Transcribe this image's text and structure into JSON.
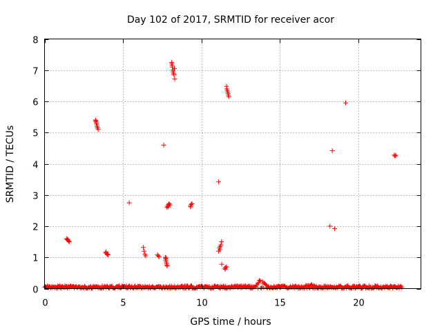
{
  "chart_data": {
    "type": "scatter",
    "title": "Day 102 of 2017, SRMTID for receiver acor",
    "xlabel": "GPS time / hours",
    "ylabel": "SRMTID / TECUs",
    "xlim": [
      0,
      24
    ],
    "ylim": [
      0,
      8
    ],
    "x_ticks": [
      0,
      5,
      10,
      15,
      20
    ],
    "x_tick_labels": [
      "0",
      "5",
      "10",
      "15",
      "20"
    ],
    "y_ticks": [
      0,
      1,
      2,
      3,
      4,
      5,
      6,
      7,
      8
    ],
    "y_tick_labels": [
      "0",
      "1",
      "2",
      "3",
      "4",
      "5",
      "6",
      "7",
      "8"
    ],
    "grid": true,
    "marker": "+",
    "color": "#ff0000",
    "baseline": {
      "x_start": 0.0,
      "x_end": 22.8,
      "y_min": 0.0,
      "y_max": 0.1,
      "bumps": [
        {
          "x": 13.8,
          "y_max": 0.35
        },
        {
          "x": 16.9,
          "y_max": 0.15
        },
        {
          "x": 11.8,
          "y_max": 0.13
        }
      ]
    },
    "points": [
      [
        1.4,
        1.6
      ],
      [
        1.45,
        1.57
      ],
      [
        1.5,
        1.55
      ],
      [
        1.55,
        1.52
      ],
      [
        1.58,
        1.5
      ],
      [
        1.47,
        1.58
      ],
      [
        3.25,
        5.4
      ],
      [
        3.28,
        5.35
      ],
      [
        3.3,
        5.3
      ],
      [
        3.33,
        5.25
      ],
      [
        3.35,
        5.2
      ],
      [
        3.38,
        5.15
      ],
      [
        3.42,
        5.1
      ],
      [
        3.27,
        5.38
      ],
      [
        3.9,
        1.15
      ],
      [
        3.95,
        1.12
      ],
      [
        4.0,
        1.1
      ],
      [
        4.05,
        1.08
      ],
      [
        3.92,
        1.18
      ],
      [
        5.4,
        2.75
      ],
      [
        6.3,
        1.32
      ],
      [
        6.35,
        1.2
      ],
      [
        6.4,
        1.1
      ],
      [
        6.45,
        1.05
      ],
      [
        7.2,
        1.08
      ],
      [
        7.25,
        1.05
      ],
      [
        7.3,
        1.02
      ],
      [
        7.6,
        4.6
      ],
      [
        7.7,
        1.0
      ],
      [
        7.72,
        0.95
      ],
      [
        7.74,
        0.9
      ],
      [
        7.76,
        0.85
      ],
      [
        7.78,
        0.8
      ],
      [
        7.8,
        0.75
      ],
      [
        7.82,
        0.72
      ],
      [
        7.75,
        0.98
      ],
      [
        7.8,
        2.6
      ],
      [
        7.85,
        2.65
      ],
      [
        7.9,
        2.7
      ],
      [
        7.95,
        2.72
      ],
      [
        8.0,
        2.68
      ],
      [
        7.88,
        2.62
      ],
      [
        8.1,
        7.25
      ],
      [
        8.12,
        7.2
      ],
      [
        8.15,
        7.1
      ],
      [
        8.18,
        7.0
      ],
      [
        8.2,
        6.95
      ],
      [
        8.22,
        6.9
      ],
      [
        8.25,
        6.85
      ],
      [
        8.28,
        7.05
      ],
      [
        8.3,
        6.72
      ],
      [
        8.14,
        7.15
      ],
      [
        9.3,
        2.65
      ],
      [
        9.35,
        2.7
      ],
      [
        9.4,
        2.72
      ],
      [
        9.32,
        2.62
      ],
      [
        11.1,
        3.42
      ],
      [
        11.1,
        1.2
      ],
      [
        11.15,
        1.3
      ],
      [
        11.2,
        1.35
      ],
      [
        11.25,
        1.4
      ],
      [
        11.28,
        1.5
      ],
      [
        11.18,
        1.25
      ],
      [
        11.3,
        0.78
      ],
      [
        11.5,
        0.65
      ],
      [
        11.55,
        0.68
      ],
      [
        11.6,
        0.7
      ],
      [
        11.52,
        0.62
      ],
      [
        11.6,
        6.48
      ],
      [
        11.62,
        6.4
      ],
      [
        11.65,
        6.35
      ],
      [
        11.68,
        6.3
      ],
      [
        11.7,
        6.25
      ],
      [
        11.75,
        6.15
      ],
      [
        11.72,
        6.2
      ],
      [
        18.2,
        2.0
      ],
      [
        18.35,
        4.42
      ],
      [
        18.5,
        1.92
      ],
      [
        19.2,
        5.95
      ],
      [
        22.3,
        4.28
      ],
      [
        22.35,
        4.25
      ],
      [
        22.4,
        4.27
      ]
    ]
  }
}
